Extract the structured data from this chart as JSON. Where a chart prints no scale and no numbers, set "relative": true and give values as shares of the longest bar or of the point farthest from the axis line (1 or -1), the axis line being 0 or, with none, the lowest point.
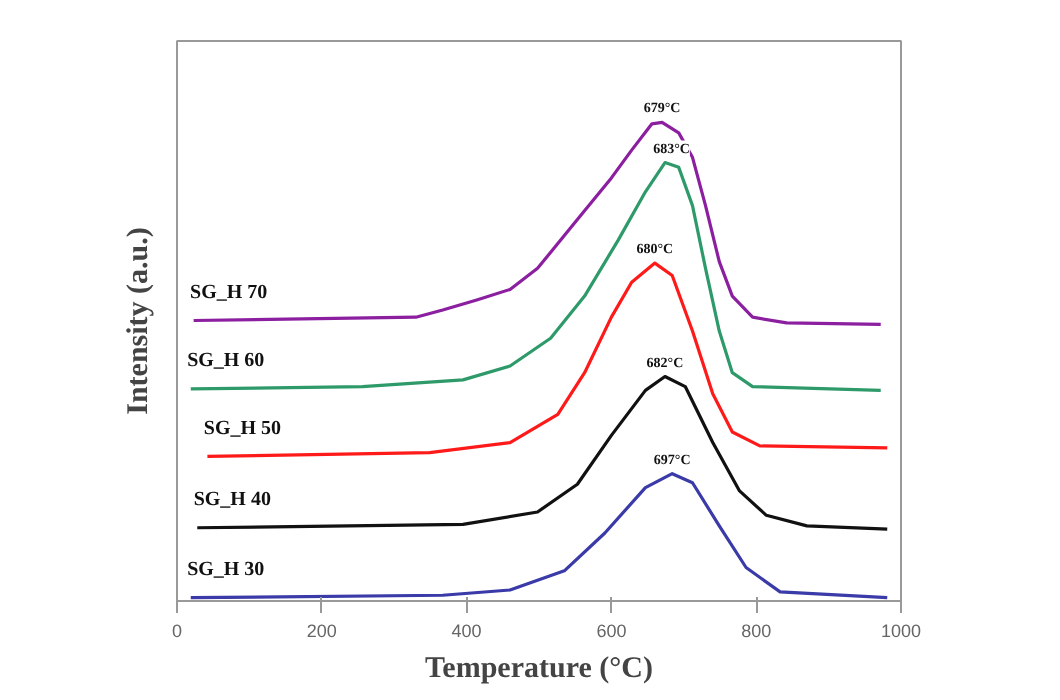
{
  "chart_data": {
    "type": "line",
    "relative": true,
    "xlabel": "Temperature (°C)",
    "ylabel": "Intensity (a.u.)",
    "xlim": [
      0,
      1000
    ],
    "xticks": [
      0,
      200,
      400,
      600,
      800,
      1000
    ],
    "tick_labels": "x",
    "grid": false,
    "series": [
      {
        "name": "SG_H 70",
        "color": "#8b1fa0",
        "x": [
          23,
          330,
          367,
          414,
          460,
          498,
          553,
          600,
          628,
          656,
          670,
          693,
          712,
          730,
          749,
          767,
          795,
          842,
          972
        ],
        "values": [
          0.586,
          0.593,
          0.608,
          0.629,
          0.651,
          0.695,
          0.797,
          0.884,
          0.942,
          0.997,
          1.0,
          0.978,
          0.927,
          0.826,
          0.709,
          0.637,
          0.593,
          0.581,
          0.578
        ]
      },
      {
        "name": "SG_H 60",
        "color": "#2e9a6a",
        "x": [
          19,
          256,
          395,
          460,
          516,
          563,
          609,
          647,
          674,
          693,
          712,
          730,
          749,
          767,
          795,
          972
        ],
        "values": [
          0.443,
          0.448,
          0.462,
          0.491,
          0.549,
          0.637,
          0.753,
          0.855,
          0.916,
          0.906,
          0.826,
          0.695,
          0.564,
          0.477,
          0.448,
          0.44
        ]
      },
      {
        "name": "SG_H 50",
        "color": "#ff1a1a",
        "x": [
          42,
          349,
          460,
          526,
          563,
          600,
          628,
          660,
          684,
          712,
          740,
          767,
          805,
          981
        ],
        "values": [
          0.302,
          0.31,
          0.331,
          0.39,
          0.477,
          0.593,
          0.666,
          0.706,
          0.68,
          0.564,
          0.433,
          0.353,
          0.324,
          0.32
        ]
      },
      {
        "name": "SG_H 40",
        "color": "#111111",
        "x": [
          28,
          395,
          498,
          553,
          600,
          647,
          674,
          702,
          740,
          777,
          814,
          870,
          981
        ],
        "values": [
          0.153,
          0.16,
          0.186,
          0.244,
          0.346,
          0.44,
          0.469,
          0.448,
          0.331,
          0.23,
          0.179,
          0.157,
          0.15
        ]
      },
      {
        "name": "SG_H 30",
        "color": "#3a3aa8",
        "x": [
          19,
          367,
          460,
          535,
          591,
          647,
          684,
          712,
          749,
          786,
          833,
          981
        ],
        "values": [
          0.007,
          0.012,
          0.023,
          0.063,
          0.142,
          0.237,
          0.266,
          0.247,
          0.157,
          0.07,
          0.019,
          0.007
        ]
      }
    ],
    "annotations": [
      {
        "text": "679°C",
        "x": 670,
        "y": 1.0
      },
      {
        "text": "683°C",
        "x": 683,
        "y": 0.916
      },
      {
        "text": "680°C",
        "x": 660,
        "y": 0.706
      },
      {
        "text": "682°C",
        "x": 674,
        "y": 0.469
      },
      {
        "text": "697°C",
        "x": 684,
        "y": 0.266
      }
    ]
  }
}
